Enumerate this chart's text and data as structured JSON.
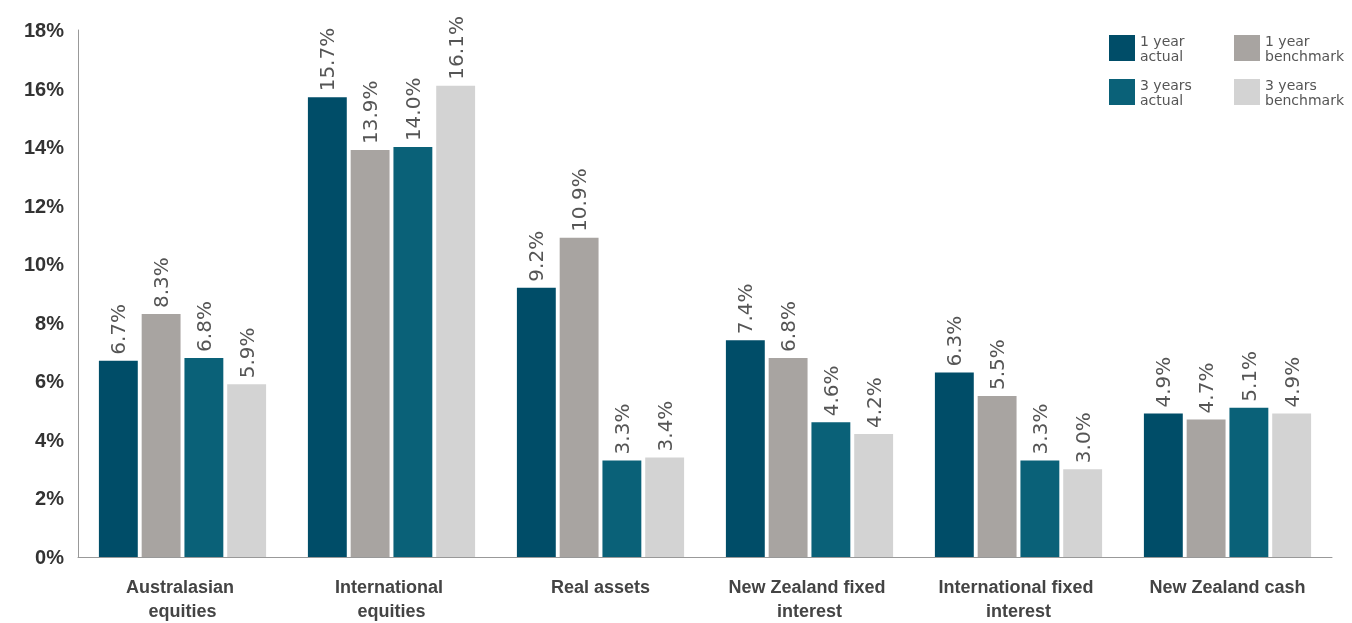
{
  "chart_data": {
    "type": "bar",
    "categories": [
      "Australasian equities",
      "International equities",
      "Real assets",
      "New Zealand fixed interest",
      "International fixed interest",
      "New Zealand cash"
    ],
    "series": [
      {
        "name": "1 year actual",
        "color": "#004d68",
        "values": [
          6.7,
          15.7,
          9.2,
          7.4,
          6.3,
          4.9
        ],
        "value_labels": [
          "6.7%",
          "15.7%",
          "9.2%",
          "7.4%",
          "6.3%",
          "4.9%"
        ]
      },
      {
        "name": "1 year benchmark",
        "color": "#a8a4a1",
        "values": [
          8.3,
          13.9,
          10.9,
          6.8,
          5.5,
          4.7
        ],
        "value_labels": [
          "8.3%",
          "13.9%",
          "10.9%",
          "6.8%",
          "5.5%",
          "4.7%"
        ]
      },
      {
        "name": "3 years actual",
        "color": "#0a6178",
        "values": [
          6.8,
          14.0,
          3.3,
          4.6,
          3.3,
          5.1
        ],
        "value_labels": [
          "6.8%",
          "14.0%",
          "3.3%",
          "4.6%",
          "3.3%",
          "5.1%"
        ]
      },
      {
        "name": "3 years benchmark",
        "color": "#d3d3d3",
        "values": [
          5.9,
          16.1,
          3.4,
          4.2,
          3.0,
          4.9
        ],
        "value_labels": [
          "5.9%",
          "16.1%",
          "3.4%",
          "4.2%",
          "3.0%",
          "4.9%"
        ]
      }
    ],
    "ylim": [
      0,
      18
    ],
    "yticks": [
      {
        "value": 0,
        "label": "0%"
      },
      {
        "value": 2,
        "label": "2%"
      },
      {
        "value": 4,
        "label": "4%"
      },
      {
        "value": 6,
        "label": "6%"
      },
      {
        "value": 8,
        "label": "8%"
      },
      {
        "value": 10,
        "label": "10%"
      },
      {
        "value": 12,
        "label": "12%"
      },
      {
        "value": 14,
        "label": "14%"
      },
      {
        "value": 16,
        "label": "16%"
      },
      {
        "value": 18,
        "label": "18%"
      }
    ],
    "grid": false,
    "legend": "top right"
  }
}
